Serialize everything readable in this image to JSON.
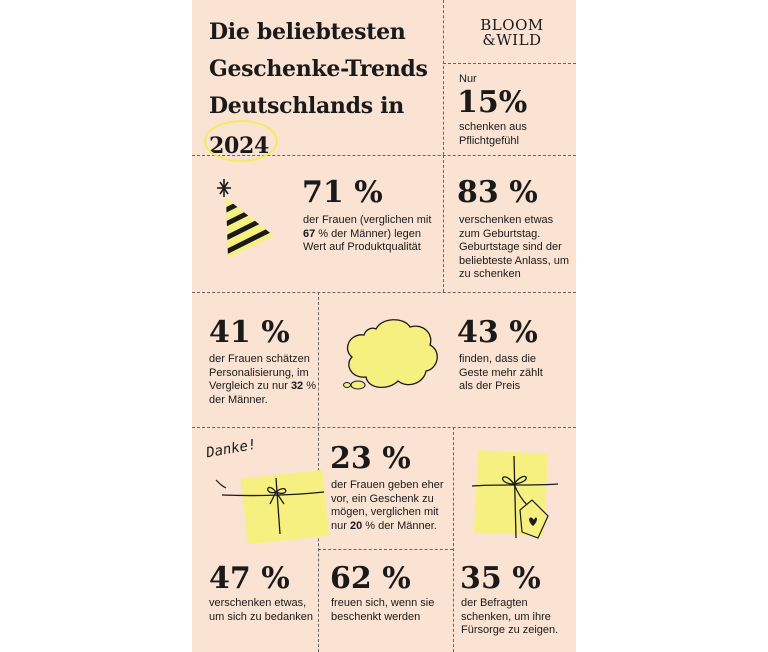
{
  "title": {
    "line1": "Die beliebtesten",
    "line2": "Geschenke-Trends",
    "line3": "Deutschlands in",
    "year": "2024"
  },
  "logo": {
    "line1": "BLOOM",
    "line2": "&WILD"
  },
  "stats": {
    "s15": {
      "prefix": "Nur",
      "value": "15%",
      "text": "schenken aus Pflichtgefühl"
    },
    "s71": {
      "value": "71 %",
      "text_a": "der Frauen (verglichen mit",
      "text_bold": "67",
      "text_b": " % der Männer) legen Wert auf Produktqualität"
    },
    "s83": {
      "value": "83 %",
      "text": "verschenken etwas zum Geburtstag. Geburtstage sind der beliebteste Anlass, um zu schenken"
    },
    "s41": {
      "value": "41 %",
      "text_a": "der Frauen schätzen Personalisierung, im Vergleich zu nur ",
      "text_bold": "32",
      "text_b": " % der Männer."
    },
    "s43": {
      "value": "43 %",
      "text": "finden, dass die Geste mehr zählt als der Preis"
    },
    "s23": {
      "value": "23 %",
      "text_a": "der Frauen geben eher vor, ein Geschenk zu mögen, verglichen mit nur ",
      "text_bold": "20",
      "text_b": " % der Männer."
    },
    "s47": {
      "value": "47 %",
      "text": "verschenken etwas, um sich zu bedanken"
    },
    "s62": {
      "value": "62 %",
      "text": "freuen sich, wenn sie beschenkt werden"
    },
    "s35": {
      "value": "35 %",
      "text": "der Befragten schenken, um ihre Fürsorge zu zeigen."
    }
  },
  "illustrations": {
    "danke_text": "Danke!"
  },
  "colors": {
    "background": "#fae3d2",
    "accent_yellow": "#f5f080",
    "text": "#1a1a1a",
    "dash": "#6e6460"
  }
}
